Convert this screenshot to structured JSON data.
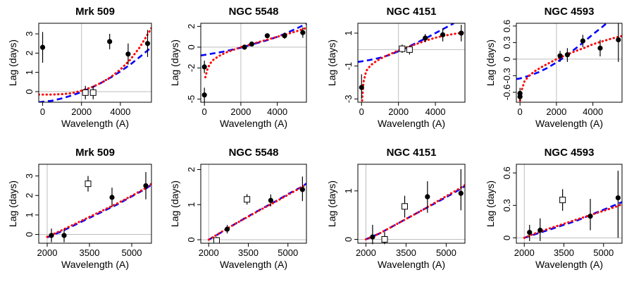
{
  "chart_data": [
    {
      "type": "scatter",
      "title": "Mrk 509",
      "xlabel": "Wavelength (A)",
      "ylabel": "Lag (days)",
      "xlim": [
        -200,
        5600
      ],
      "ylim": [
        -0.55,
        3.55
      ],
      "xticks": [
        0,
        2000,
        4000
      ],
      "yticks": [
        0,
        1,
        2,
        3
      ],
      "vline": 2000,
      "hline": 0,
      "points": [
        {
          "x": 0,
          "y": 2.3,
          "lo": 1.5,
          "hi": 3.1,
          "marker": "filled"
        },
        {
          "x": 2200,
          "y": -0.05,
          "lo": -0.4,
          "hi": 0.3,
          "marker": "open"
        },
        {
          "x": 2600,
          "y": -0.05,
          "lo": -0.4,
          "hi": 0.3,
          "marker": "open"
        },
        {
          "x": 3450,
          "y": 2.6,
          "lo": 2.2,
          "hi": 3.0,
          "marker": "filled"
        },
        {
          "x": 4400,
          "y": 1.95,
          "lo": 1.4,
          "hi": 2.5,
          "marker": "filled"
        },
        {
          "x": 5400,
          "y": 2.5,
          "lo": 1.8,
          "hi": 3.2,
          "marker": "filled"
        }
      ],
      "series": [
        {
          "style": "dashed",
          "color": "#0000ff",
          "x": [
            -200,
            500,
            1000,
            1500,
            2000,
            2500,
            3000,
            3500,
            4000,
            4500,
            5000,
            5600
          ],
          "y": [
            -0.55,
            -0.47,
            -0.35,
            -0.2,
            -0.02,
            0.2,
            0.45,
            0.73,
            1.05,
            1.4,
            1.8,
            2.3
          ]
        },
        {
          "style": "dotted",
          "color": "#ff0000",
          "x": [
            -200,
            500,
            1000,
            1500,
            2000,
            2500,
            3000,
            3500,
            4000,
            4500,
            5000,
            5600
          ],
          "y": [
            -0.15,
            -0.15,
            -0.13,
            -0.08,
            0.05,
            0.22,
            0.45,
            0.75,
            1.15,
            1.65,
            2.3,
            3.3
          ]
        }
      ]
    },
    {
      "type": "scatter",
      "title": "NGC 5548",
      "xlabel": "Wavelength (A)",
      "ylabel": "Lag (days)",
      "xlim": [
        -200,
        5600
      ],
      "ylim": [
        -5.3,
        2.3
      ],
      "xticks": [
        0,
        2000,
        4000
      ],
      "yticks": [
        -5,
        -2,
        0,
        2
      ],
      "vline": 2000,
      "hline": 0,
      "points": [
        {
          "x": 0,
          "y": -1.9,
          "lo": -2.5,
          "hi": -1.3,
          "marker": "filled"
        },
        {
          "x": 0,
          "y": -4.6,
          "lo": -5.3,
          "hi": -3.9,
          "marker": "filled"
        },
        {
          "x": 2200,
          "y": 0.0,
          "lo": -0.2,
          "hi": 0.2,
          "marker": "filled"
        },
        {
          "x": 2600,
          "y": 0.3,
          "lo": 0.1,
          "hi": 0.5,
          "marker": "filled"
        },
        {
          "x": 3450,
          "y": 1.1,
          "lo": 0.9,
          "hi": 1.3,
          "marker": "filled"
        },
        {
          "x": 4400,
          "y": 1.1,
          "lo": 0.8,
          "hi": 1.4,
          "marker": "filled"
        },
        {
          "x": 5400,
          "y": 1.4,
          "lo": 0.9,
          "hi": 1.9,
          "marker": "filled"
        }
      ],
      "series": [
        {
          "style": "dashed",
          "color": "#0000ff",
          "x": [
            -200,
            0,
            500,
            1000,
            1500,
            2000,
            2500,
            3000,
            3500,
            4000,
            4500,
            5000,
            5600
          ],
          "y": [
            -0.8,
            -0.75,
            -0.6,
            -0.45,
            -0.25,
            -0.05,
            0.2,
            0.45,
            0.7,
            1.0,
            1.35,
            1.75,
            2.25
          ]
        },
        {
          "style": "dotted",
          "color": "#ff0000",
          "x": [
            50,
            150,
            300,
            500,
            800,
            1200,
            1600,
            2000,
            2500,
            3000,
            3500,
            4000,
            4500,
            5000,
            5600
          ],
          "y": [
            -2.9,
            -2.2,
            -1.6,
            -1.2,
            -0.85,
            -0.5,
            -0.25,
            0.0,
            0.25,
            0.5,
            0.75,
            1.0,
            1.25,
            1.5,
            1.85
          ]
        }
      ]
    },
    {
      "type": "scatter",
      "title": "NGC 4151",
      "xlabel": "Wavelength (A)",
      "ylabel": "Lag (days)",
      "xlim": [
        -200,
        5600
      ],
      "ylim": [
        -3.2,
        1.6
      ],
      "xticks": [
        0,
        2000,
        4000
      ],
      "yticks": [
        -3,
        -1,
        1
      ],
      "vline": 2000,
      "hline": 0,
      "points": [
        {
          "x": 0,
          "y": -2.3,
          "lo": -3.0,
          "hi": -1.5,
          "marker": "filled"
        },
        {
          "x": 2200,
          "y": 0.05,
          "lo": -0.2,
          "hi": 0.3,
          "marker": "open"
        },
        {
          "x": 2600,
          "y": 0.0,
          "lo": -0.3,
          "hi": 0.25,
          "marker": "open"
        },
        {
          "x": 3450,
          "y": 0.7,
          "lo": 0.45,
          "hi": 0.95,
          "marker": "filled"
        },
        {
          "x": 4400,
          "y": 0.9,
          "lo": 0.5,
          "hi": 1.3,
          "marker": "filled"
        },
        {
          "x": 5400,
          "y": 1.0,
          "lo": 0.5,
          "hi": 1.5,
          "marker": "filled"
        }
      ],
      "series": [
        {
          "style": "dashed",
          "color": "#0000ff",
          "x": [
            -200,
            0,
            500,
            1000,
            1500,
            2000,
            2500,
            3000,
            3500,
            4000,
            4500,
            5000
          ],
          "y": [
            -0.75,
            -0.72,
            -0.62,
            -0.5,
            -0.33,
            -0.1,
            0.15,
            0.42,
            0.7,
            1.0,
            1.3,
            1.6
          ]
        },
        {
          "x": [
            30,
            100,
            250,
            500,
            800,
            1200,
            1600,
            2000,
            2500,
            3000,
            3500,
            4000,
            4500,
            5000,
            5600
          ],
          "y": [
            -3.1,
            -2.0,
            -1.3,
            -0.95,
            -0.7,
            -0.45,
            -0.25,
            -0.05,
            0.15,
            0.35,
            0.55,
            0.72,
            0.85,
            0.95,
            1.05
          ],
          "style": "dotted",
          "color": "#ff0000"
        }
      ]
    },
    {
      "type": "scatter",
      "title": "NGC 4593",
      "xlabel": "Wavelength (A)",
      "ylabel": "Lag (days)",
      "xlim": [
        -200,
        5600
      ],
      "ylim": [
        -0.78,
        0.65
      ],
      "xticks": [
        0,
        2000,
        4000
      ],
      "yticks": [
        -0.6,
        -0.3,
        0.0,
        0.3,
        0.6
      ],
      "vline": 2000,
      "hline": 0,
      "points": [
        {
          "x": 0,
          "y": -0.62,
          "lo": -0.72,
          "hi": -0.52,
          "marker": "filled"
        },
        {
          "x": 0,
          "y": -0.68,
          "lo": -0.75,
          "hi": -0.6,
          "marker": "filled"
        },
        {
          "x": 2200,
          "y": 0.06,
          "lo": -0.05,
          "hi": 0.15,
          "marker": "filled"
        },
        {
          "x": 2600,
          "y": 0.08,
          "lo": -0.05,
          "hi": 0.2,
          "marker": "filled"
        },
        {
          "x": 3450,
          "y": 0.33,
          "lo": 0.22,
          "hi": 0.44,
          "marker": "filled"
        },
        {
          "x": 4400,
          "y": 0.2,
          "lo": 0.05,
          "hi": 0.35,
          "marker": "filled"
        },
        {
          "x": 5400,
          "y": 0.35,
          "lo": -0.05,
          "hi": 0.65,
          "marker": "filled"
        }
      ],
      "series": [
        {
          "style": "dashed",
          "color": "#0000ff",
          "x": [
            -200,
            0,
            500,
            1000,
            1500,
            2000,
            2500,
            3000,
            3500,
            4000,
            4500,
            5000
          ],
          "y": [
            -0.36,
            -0.35,
            -0.3,
            -0.24,
            -0.16,
            -0.06,
            0.05,
            0.18,
            0.31,
            0.45,
            0.58,
            0.72
          ]
        },
        {
          "style": "dotted",
          "color": "#ff0000",
          "x": [
            0,
            100,
            250,
            500,
            800,
            1200,
            1600,
            2000,
            2500,
            3000,
            3500,
            4000,
            4500,
            5000,
            5600
          ],
          "y": [
            -0.75,
            -0.55,
            -0.4,
            -0.3,
            -0.22,
            -0.14,
            -0.07,
            0.0,
            0.07,
            0.14,
            0.2,
            0.27,
            0.32,
            0.37,
            0.42
          ]
        }
      ]
    },
    {
      "type": "scatter",
      "title": "Mrk 509",
      "xlabel": "Wavelength (A)",
      "ylabel": "Lag (days)",
      "xlim": [
        1700,
        5700
      ],
      "ylim": [
        -0.45,
        3.6
      ],
      "xticks": [
        2000,
        3500,
        5000
      ],
      "yticks": [
        0,
        1,
        2,
        3
      ],
      "vline": 2000,
      "hline": 0,
      "points": [
        {
          "x": 2150,
          "y": -0.05,
          "lo": -0.4,
          "hi": 0.3,
          "marker": "filled"
        },
        {
          "x": 2600,
          "y": -0.05,
          "lo": -0.4,
          "hi": 0.3,
          "marker": "filled"
        },
        {
          "x": 3450,
          "y": 2.6,
          "lo": 2.2,
          "hi": 3.0,
          "marker": "open"
        },
        {
          "x": 4300,
          "y": 1.9,
          "lo": 1.4,
          "hi": 2.4,
          "marker": "filled"
        },
        {
          "x": 5500,
          "y": 2.5,
          "lo": 1.8,
          "hi": 3.2,
          "marker": "filled"
        }
      ],
      "series": [
        {
          "style": "dashed",
          "color": "#0000ff",
          "x": [
            2000,
            2500,
            3000,
            3500,
            4000,
            4500,
            5000,
            5500,
            5700
          ],
          "y": [
            -0.15,
            0.15,
            0.5,
            0.85,
            1.2,
            1.55,
            1.95,
            2.35,
            2.55
          ]
        },
        {
          "style": "dotted",
          "color": "#ff0000",
          "x": [
            2000,
            2500,
            3000,
            3500,
            4000,
            4500,
            5000,
            5500,
            5700
          ],
          "y": [
            -0.12,
            0.2,
            0.55,
            0.9,
            1.25,
            1.6,
            1.98,
            2.38,
            2.6
          ]
        }
      ]
    },
    {
      "type": "scatter",
      "title": "NGC 5548",
      "xlabel": "Wavelength (A)",
      "ylabel": "Lag (days)",
      "xlim": [
        1700,
        5700
      ],
      "ylim": [
        -0.1,
        2.15
      ],
      "xticks": [
        2000,
        3500,
        5000
      ],
      "yticks": [
        0.0,
        1.0,
        2.0
      ],
      "vline": 2000,
      "hline": 0,
      "points": [
        {
          "x": 2300,
          "y": -0.02,
          "lo": -0.1,
          "hi": 0.08,
          "marker": "open"
        },
        {
          "x": 2700,
          "y": 0.3,
          "lo": 0.18,
          "hi": 0.42,
          "marker": "filled"
        },
        {
          "x": 3450,
          "y": 1.15,
          "lo": 1.0,
          "hi": 1.3,
          "marker": "open"
        },
        {
          "x": 4350,
          "y": 1.12,
          "lo": 0.95,
          "hi": 1.29,
          "marker": "filled"
        },
        {
          "x": 5550,
          "y": 1.43,
          "lo": 1.1,
          "hi": 1.8,
          "marker": "filled"
        }
      ],
      "series": [
        {
          "style": "dashed",
          "color": "#0000ff",
          "x": [
            2000,
            2500,
            3000,
            3500,
            4000,
            4500,
            5000,
            5500,
            5700
          ],
          "y": [
            0.0,
            0.22,
            0.45,
            0.67,
            0.88,
            1.08,
            1.3,
            1.5,
            1.6
          ]
        },
        {
          "style": "dotted",
          "color": "#ff0000",
          "x": [
            2000,
            2500,
            3000,
            3500,
            4000,
            4500,
            5000,
            5500,
            5700
          ],
          "y": [
            0.0,
            0.23,
            0.45,
            0.66,
            0.87,
            1.07,
            1.28,
            1.49,
            1.58
          ]
        }
      ]
    },
    {
      "type": "scatter",
      "title": "NGC 4151",
      "xlabel": "Wavelength (A)",
      "ylabel": "Lag (days)",
      "xlim": [
        1700,
        5700
      ],
      "ylim": [
        -0.08,
        1.55
      ],
      "xticks": [
        2000,
        3500,
        5000
      ],
      "yticks": [
        0.0,
        1.0
      ],
      "vline": 2000,
      "hline": 0,
      "points": [
        {
          "x": 2250,
          "y": 0.05,
          "lo": -0.1,
          "hi": 0.3,
          "marker": "filled"
        },
        {
          "x": 2700,
          "y": 0.0,
          "lo": -0.1,
          "hi": 0.15,
          "marker": "open"
        },
        {
          "x": 3450,
          "y": 0.68,
          "lo": 0.45,
          "hi": 0.9,
          "marker": "open"
        },
        {
          "x": 4300,
          "y": 0.88,
          "lo": 0.55,
          "hi": 1.2,
          "marker": "filled"
        },
        {
          "x": 5550,
          "y": 0.95,
          "lo": 0.6,
          "hi": 1.45,
          "marker": "filled"
        }
      ],
      "series": [
        {
          "style": "dashed",
          "color": "#0000ff",
          "x": [
            2000,
            2500,
            3000,
            3500,
            4000,
            4500,
            5000,
            5500,
            5700
          ],
          "y": [
            0.0,
            0.12,
            0.27,
            0.42,
            0.57,
            0.72,
            0.87,
            1.03,
            1.1
          ]
        },
        {
          "style": "dotted",
          "color": "#ff0000",
          "x": [
            2000,
            2500,
            3000,
            3500,
            4000,
            4500,
            5000,
            5500,
            5700
          ],
          "y": [
            0.0,
            0.12,
            0.27,
            0.42,
            0.57,
            0.73,
            0.89,
            1.05,
            1.12
          ]
        }
      ]
    },
    {
      "type": "scatter",
      "title": "NGC 4593",
      "xlabel": "Wavelength (A)",
      "ylabel": "Lag (days)",
      "xlim": [
        1700,
        5700
      ],
      "ylim": [
        -0.05,
        0.68
      ],
      "xticks": [
        2000,
        3500,
        5000
      ],
      "yticks": [
        0.0,
        0.3,
        0.6
      ],
      "vline": 2000,
      "hline": 0,
      "points": [
        {
          "x": 2200,
          "y": 0.05,
          "lo": -0.03,
          "hi": 0.12,
          "marker": "filled"
        },
        {
          "x": 2600,
          "y": 0.07,
          "lo": -0.03,
          "hi": 0.18,
          "marker": "filled"
        },
        {
          "x": 3450,
          "y": 0.35,
          "lo": 0.25,
          "hi": 0.45,
          "marker": "open"
        },
        {
          "x": 4500,
          "y": 0.2,
          "lo": 0.07,
          "hi": 0.36,
          "marker": "filled"
        },
        {
          "x": 5550,
          "y": 0.37,
          "lo": 0.0,
          "hi": 0.62,
          "marker": "filled"
        }
      ],
      "series": [
        {
          "style": "dashed",
          "color": "#0000ff",
          "x": [
            2000,
            2500,
            3000,
            3500,
            4000,
            4500,
            5000,
            5500,
            5700
          ],
          "y": [
            0.0,
            0.04,
            0.08,
            0.12,
            0.16,
            0.21,
            0.26,
            0.31,
            0.33
          ]
        },
        {
          "style": "dotted",
          "color": "#ff0000",
          "x": [
            2000,
            2500,
            3000,
            3500,
            4000,
            4500,
            5000,
            5500,
            5700
          ],
          "y": [
            0.0,
            0.05,
            0.09,
            0.13,
            0.17,
            0.21,
            0.25,
            0.29,
            0.31
          ]
        }
      ]
    }
  ]
}
